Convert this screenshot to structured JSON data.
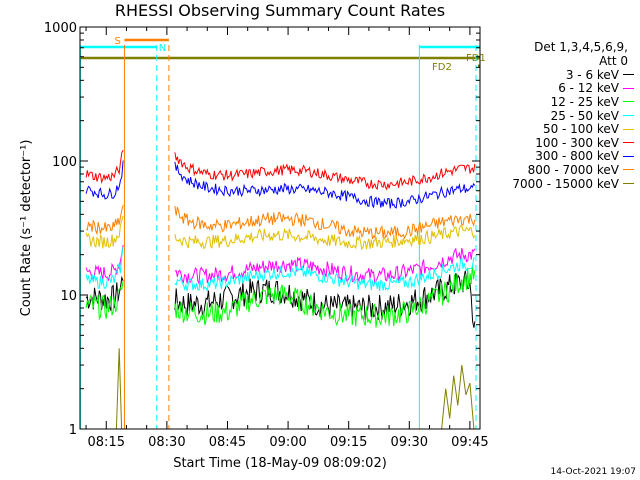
{
  "title": "RHESSI Observing Summary Count Rates",
  "xlabel": "Start Time (18-May-09 08:09:02)",
  "ylabel": "Count Rate (s⁻¹ detector⁻¹)",
  "timestamp": "14-Oct-2021 19:07",
  "legend": {
    "header1": "Det 1,3,4,5,6,9,",
    "header2": "Att 0"
  },
  "chart_data": {
    "type": "line",
    "title": "RHESSI Observing Summary Count Rates",
    "xlabel": "Start Time (18-May-09 08:09:02)",
    "ylabel": "Count Rate (s⁻¹ detector⁻¹)",
    "yscale": "log",
    "ylim": [
      1,
      1000
    ],
    "xlim_minutes": [
      488.5,
      587.5
    ],
    "x_unit": "time of day (minutes after 00:00)",
    "x_ticks": [
      "08:15",
      "08:30",
      "08:45",
      "09:00",
      "09:15",
      "09:30",
      "09:45"
    ],
    "x_tick_minutes": [
      495,
      510,
      525,
      540,
      555,
      570,
      585
    ],
    "y_ticks": [
      "1",
      "10",
      "100",
      "1000"
    ],
    "y_tick_values": [
      1,
      10,
      100,
      1000
    ],
    "legend_position": "right, outside plot",
    "series": [
      {
        "name": "3 - 6 keV",
        "color": "#000000",
        "t": [
          490,
          493,
          495,
          497,
          498.5,
          499.5,
          500.5,
          506,
          508,
          512,
          515,
          520,
          525,
          530,
          535,
          540,
          545,
          550,
          555,
          560,
          565,
          570,
          575,
          580,
          583,
          585,
          586,
          586.5
        ],
        "v": [
          9.5,
          9.5,
          9.3,
          9.5,
          11,
          16,
          null,
          null,
          null,
          9,
          8.5,
          8.7,
          9.5,
          10.5,
          11,
          10.5,
          9,
          8.2,
          8,
          8,
          8.2,
          8.8,
          10,
          11.5,
          12.5,
          12,
          6,
          5
        ]
      },
      {
        "name": "6 - 12 keV",
        "color": "#ff00ff",
        "t": [
          490,
          493,
          495,
          497,
          498.5,
          499.5,
          500.5,
          506,
          508,
          512,
          515,
          520,
          525,
          530,
          535,
          540,
          545,
          550,
          555,
          560,
          565,
          570,
          575,
          580,
          583,
          586.5
        ],
        "v": [
          15,
          14.5,
          14.5,
          15,
          18,
          30,
          null,
          null,
          null,
          15,
          14,
          14,
          14.5,
          15.5,
          16.5,
          17,
          16.5,
          15.5,
          14.5,
          14,
          14,
          15,
          16.5,
          19,
          20,
          20
        ]
      },
      {
        "name": "12 - 25 keV",
        "color": "#00ff00",
        "t": [
          490,
          493,
          495,
          497,
          498.5,
          499.5,
          500.5,
          506,
          508,
          512,
          515,
          520,
          525,
          530,
          535,
          540,
          545,
          550,
          555,
          560,
          565,
          570,
          575,
          580,
          583,
          586.5
        ],
        "v": [
          8.5,
          8.2,
          8,
          8.5,
          10,
          14,
          null,
          null,
          null,
          8,
          7.5,
          7.3,
          7.5,
          9,
          10,
          10,
          8.5,
          7.5,
          7,
          7,
          7,
          7.5,
          9,
          11,
          13,
          14
        ]
      },
      {
        "name": "25 - 50 keV",
        "color": "#00ffff",
        "t": [
          490,
          493,
          495,
          497,
          498.5,
          499.5,
          500.5,
          506,
          508,
          512,
          515,
          520,
          525,
          530,
          535,
          540,
          545,
          550,
          555,
          560,
          565,
          570,
          575,
          580,
          583,
          586.5
        ],
        "v": [
          13,
          12.5,
          12.5,
          13,
          16,
          25,
          null,
          null,
          null,
          13,
          12,
          12,
          12.5,
          13.5,
          14.5,
          15,
          14.5,
          13.5,
          12.5,
          12,
          12,
          12.5,
          14,
          16,
          17,
          17
        ]
      },
      {
        "name": "50 - 100 keV",
        "color": "#e0c000",
        "t": [
          490,
          493,
          495,
          497,
          498.5,
          499.5,
          500.5,
          506,
          508,
          512,
          515,
          520,
          525,
          530,
          535,
          540,
          545,
          550,
          555,
          560,
          565,
          570,
          575,
          580,
          583,
          586.5
        ],
        "v": [
          26,
          25,
          25,
          26,
          30,
          45,
          null,
          null,
          null,
          27,
          25,
          25,
          25.5,
          27,
          28,
          28,
          27,
          25.5,
          24.5,
          24.5,
          25,
          26,
          27,
          29,
          30,
          30
        ]
      },
      {
        "name": "100 - 300 keV",
        "color": "#ff0000",
        "t": [
          490,
          493,
          495,
          497,
          498.5,
          499.5,
          500.5,
          506,
          508,
          512,
          515,
          520,
          525,
          530,
          535,
          540,
          545,
          550,
          555,
          560,
          565,
          570,
          575,
          580,
          583,
          586.5
        ],
        "v": [
          80,
          76,
          75,
          78,
          90,
          150,
          null,
          null,
          null,
          110,
          90,
          80,
          78,
          80,
          84,
          86,
          84,
          78,
          72,
          68,
          67,
          70,
          76,
          84,
          88,
          88
        ]
      },
      {
        "name": "300 - 800 keV",
        "color": "#0000ff",
        "t": [
          490,
          493,
          495,
          497,
          498.5,
          499.5,
          500.5,
          506,
          508,
          512,
          515,
          520,
          525,
          530,
          535,
          540,
          545,
          550,
          555,
          560,
          565,
          570,
          575,
          580,
          583,
          586.5
        ],
        "v": [
          62,
          58,
          56,
          58,
          70,
          115,
          null,
          null,
          null,
          90,
          72,
          63,
          60,
          60,
          61,
          62,
          61,
          58,
          54,
          50,
          48,
          50,
          55,
          60,
          62,
          62
        ]
      },
      {
        "name": "800 - 7000 keV",
        "color": "#ff8000",
        "t": [
          490,
          493,
          495,
          497,
          498.5,
          499.5,
          500.5,
          506,
          508,
          512,
          515,
          520,
          525,
          530,
          535,
          540,
          545,
          550,
          555,
          560,
          565,
          570,
          575,
          580,
          583,
          586.5
        ],
        "v": [
          33,
          32,
          31,
          32,
          37,
          55,
          null,
          null,
          null,
          42,
          36,
          33,
          33,
          35,
          37,
          37,
          36,
          33,
          30,
          29,
          29,
          30,
          33,
          36,
          37,
          37
        ]
      },
      {
        "name": "7000 - 15000 keV",
        "color": "#808000",
        "t": [
          497.5,
          498.2,
          498.8,
          500,
          578,
          579,
          580,
          581,
          582,
          583,
          584,
          585,
          586
        ],
        "v": [
          1,
          4,
          1,
          null,
          1,
          2,
          1.2,
          2.5,
          1.5,
          3,
          1.8,
          2.2,
          1
        ]
      }
    ],
    "flag_bars": [
      {
        "label": "S",
        "color": "#ff8000",
        "start_minutes": 499.5,
        "end_minutes": 510.5
      },
      {
        "label": "N",
        "color": "#00ffff",
        "start_minutes": 488.5,
        "end_minutes": 507.5
      },
      {
        "label": "",
        "color": "#00ffff",
        "start_minutes": 572.5,
        "end_minutes": 587.5
      },
      {
        "label": "FD1",
        "color": "#808000",
        "start_minutes": 488.5,
        "end_minutes": 587.5
      },
      {
        "label": "FD2",
        "color": "#808000",
        "start_minutes": 587,
        "end_minutes": 587.5
      }
    ],
    "vertical_markers": [
      {
        "color": "#00ffff",
        "style": "solid",
        "t_minutes": 488.6
      },
      {
        "color": "#ff8000",
        "style": "solid",
        "t_minutes": 499.5
      },
      {
        "color": "#00ffff",
        "style": "dashed",
        "t_minutes": 507.5
      },
      {
        "color": "#ff8000",
        "style": "dashed",
        "t_minutes": 510.5
      },
      {
        "color": "#00ffff",
        "style": "solid",
        "t_minutes": 572.5
      },
      {
        "color": "#00ffff",
        "style": "dashed",
        "t_minutes": 586.5
      }
    ]
  }
}
